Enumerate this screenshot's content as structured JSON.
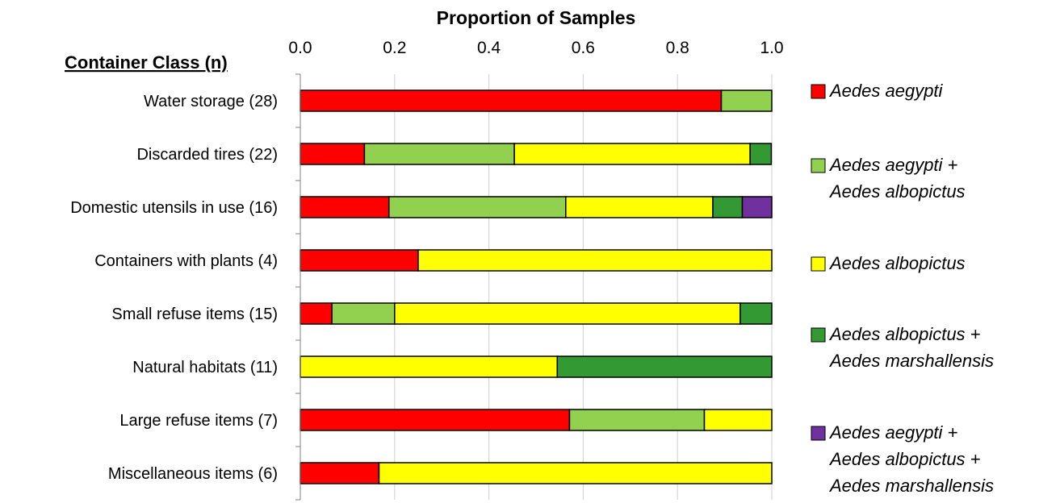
{
  "chart_data": {
    "type": "bar",
    "stacked": true,
    "orientation": "horizontal",
    "title": "Proportion of Samples",
    "category_axis_title": "Container Class (n)",
    "xlim": [
      0,
      1
    ],
    "x_ticks": [
      "0.0",
      "0.2",
      "0.4",
      "0.6",
      "0.8",
      "1.0"
    ],
    "x_tick_values": [
      0,
      0.2,
      0.4,
      0.6,
      0.8,
      1.0
    ],
    "legend_position": "right",
    "categories": [
      "Water storage (28)",
      "Discarded tires (22)",
      "Domestic utensils in use (16)",
      "Containers with plants (4)",
      "Small refuse items (15)",
      "Natural habitats (11)",
      "Large refuse items (7)",
      "Miscellaneous items (6)"
    ],
    "series": [
      {
        "name": [
          "Aedes aegypti"
        ],
        "color": "#ff0000",
        "values": [
          0.893,
          0.136,
          0.188,
          0.25,
          0.067,
          0.0,
          0.571,
          0.167
        ]
      },
      {
        "name": [
          "Aedes aegypti +",
          "Aedes albopictus"
        ],
        "color": "#92d050",
        "values": [
          0.107,
          0.318,
          0.375,
          0.0,
          0.133,
          0.0,
          0.286,
          0.0
        ]
      },
      {
        "name": [
          "Aedes albopictus"
        ],
        "color": "#ffff00",
        "values": [
          0.0,
          0.5,
          0.312,
          0.75,
          0.733,
          0.545,
          0.143,
          0.833
        ]
      },
      {
        "name": [
          "Aedes albopictus +",
          "Aedes marshallensis"
        ],
        "color": "#339933",
        "values": [
          0.0,
          0.045,
          0.0625,
          0.0,
          0.067,
          0.455,
          0.0,
          0.0
        ]
      },
      {
        "name": [
          "Aedes aegypti +",
          "Aedes albopictus +",
          "Aedes marshallensis"
        ],
        "color": "#7030a0",
        "values": [
          0.0,
          0.0,
          0.0625,
          0.0,
          0.0,
          0.0,
          0.0,
          0.0
        ]
      }
    ]
  }
}
